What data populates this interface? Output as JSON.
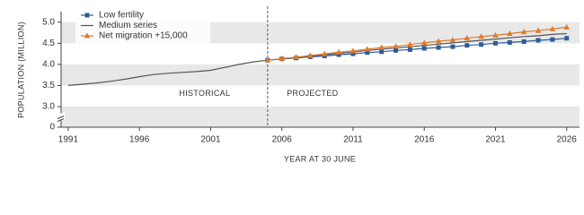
{
  "chart_data": {
    "type": "line",
    "x": [
      1991,
      1992,
      1993,
      1994,
      1995,
      1996,
      1997,
      1998,
      1999,
      2000,
      2001,
      2002,
      2003,
      2004,
      2005,
      2006,
      2007,
      2008,
      2009,
      2010,
      2011,
      2012,
      2013,
      2014,
      2015,
      2016,
      2017,
      2018,
      2019,
      2020,
      2021,
      2022,
      2023,
      2024,
      2025,
      2026
    ],
    "series": [
      {
        "name": "Low fertility",
        "color": "#2e5c99",
        "marker": "square",
        "values": [
          null,
          null,
          null,
          null,
          null,
          null,
          null,
          null,
          null,
          null,
          null,
          null,
          null,
          null,
          4.1,
          4.13,
          4.15,
          4.18,
          4.2,
          4.23,
          4.25,
          4.28,
          4.3,
          4.33,
          4.35,
          4.38,
          4.4,
          4.42,
          4.45,
          4.47,
          4.5,
          4.52,
          4.54,
          4.57,
          4.59,
          4.62
        ]
      },
      {
        "name": "Medium series",
        "color": "#555555",
        "marker": "none",
        "values": [
          3.5,
          3.53,
          3.56,
          3.6,
          3.65,
          3.71,
          3.76,
          3.79,
          3.81,
          3.83,
          3.86,
          3.93,
          4.0,
          4.06,
          4.1,
          4.13,
          4.16,
          4.2,
          4.23,
          4.26,
          4.29,
          4.33,
          4.36,
          4.39,
          4.42,
          4.45,
          4.48,
          4.51,
          4.54,
          4.57,
          4.6,
          4.63,
          4.66,
          4.68,
          4.71,
          4.73
        ]
      },
      {
        "name": "Net migration +15,000",
        "color": "#e07b2a",
        "marker": "triangle",
        "values": [
          null,
          null,
          null,
          null,
          null,
          null,
          null,
          null,
          null,
          null,
          null,
          null,
          null,
          null,
          4.1,
          4.14,
          4.17,
          4.21,
          4.25,
          4.29,
          4.32,
          4.36,
          4.4,
          4.43,
          4.47,
          4.51,
          4.55,
          4.58,
          4.62,
          4.66,
          4.69,
          4.73,
          4.77,
          4.8,
          4.84,
          4.88
        ]
      }
    ],
    "xlim": [
      1990.5,
      2026.9
    ],
    "xticks": [
      1991,
      1996,
      2001,
      2006,
      2011,
      2016,
      2021,
      2026
    ],
    "ylim": [
      0,
      5.25
    ],
    "yticks": [
      0,
      {
        "value": 3,
        "label": "3.0"
      },
      {
        "value": 3.5,
        "label": "3.5"
      },
      {
        "value": 4,
        "label": "4.0"
      },
      {
        "value": 4.5,
        "label": "4.5"
      },
      {
        "value": 5,
        "label": "5.0"
      }
    ],
    "y_axis_break": true,
    "x_label": "YEAR AT 30 JUNE",
    "y_label": "POPULATION (MILLION)",
    "projection_start": 2005,
    "annotations": [
      "HISTORICAL",
      "PROJECTED"
    ],
    "legend": "upper left"
  }
}
